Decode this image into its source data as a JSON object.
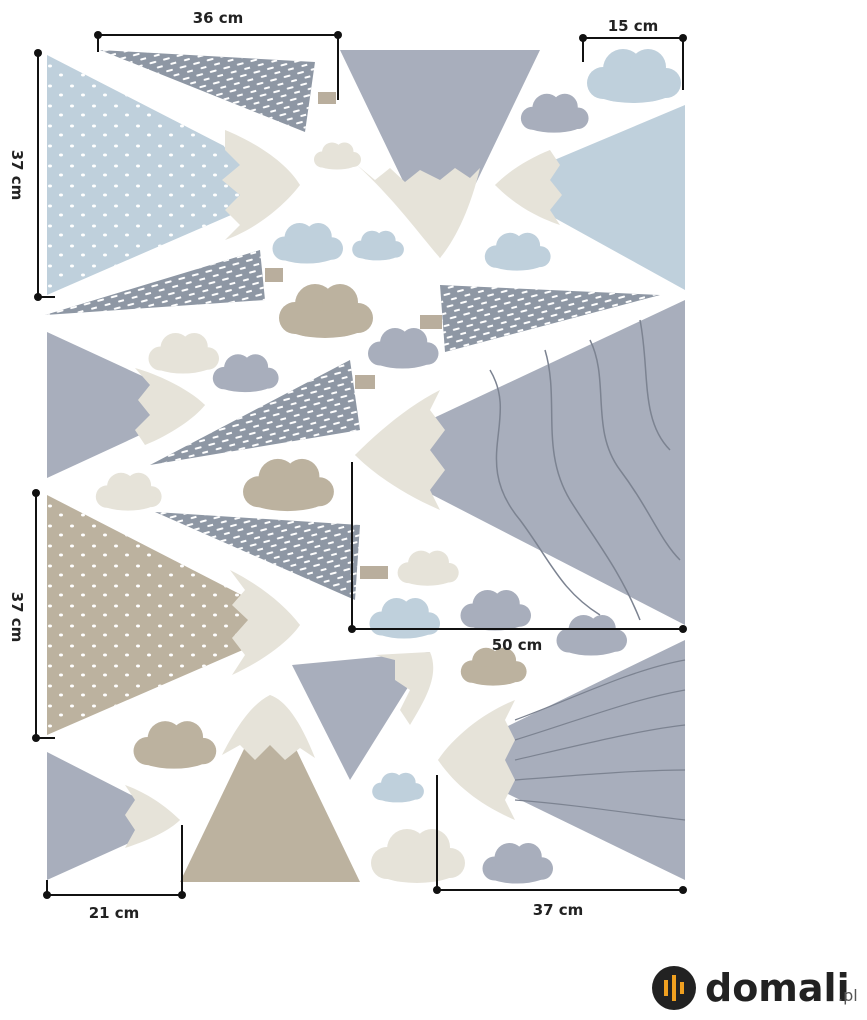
{
  "dimension_labels": [
    "36 cm",
    "15 cm",
    "37 cm",
    "37 cm",
    "50 cm",
    "21 cm",
    "37 cm"
  ],
  "logo": {
    "name": "domali",
    "suffix": ".pl"
  }
}
